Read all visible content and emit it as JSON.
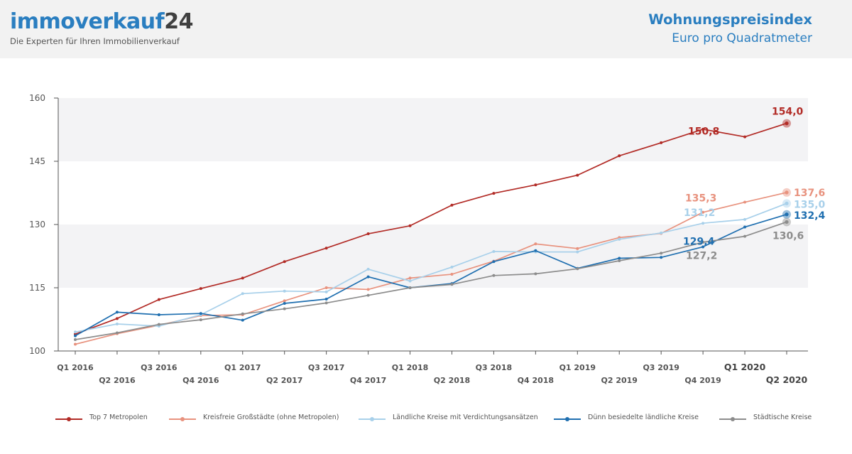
{
  "header": {
    "logo_main": "immoverkauf",
    "logo_num": "24",
    "tagline": "Die Experten für Ihren Immobilienverkauf",
    "index_title": "Wohnungspreisindex",
    "index_subtitle": "Euro pro Quadratmeter"
  },
  "chart_data": {
    "type": "line",
    "title": "Wohnungspreisindex",
    "subtitle": "Euro pro Quadratmeter",
    "x": [
      "Q1 2016",
      "Q2 2016",
      "Q3 2016",
      "Q4 2016",
      "Q1 2017",
      "Q2 2017",
      "Q3 2017",
      "Q4 2017",
      "Q1 2018",
      "Q2 2018",
      "Q3 2018",
      "Q4 2018",
      "Q1 2019",
      "Q2 2019",
      "Q3 2019",
      "Q4 2019",
      "Q1 2020",
      "Q2 2020"
    ],
    "bold_ticks": [
      "Q1 2020",
      "Q2 2020"
    ],
    "yticks": [
      100,
      115,
      130,
      145,
      160
    ],
    "ylim": [
      100,
      160
    ],
    "band_ranges": [
      [
        115,
        130
      ],
      [
        145,
        160
      ]
    ],
    "legend_position": "bottom",
    "series": [
      {
        "name": "Top 7 Metropolen",
        "color": "#b22b26",
        "values": [
          104.0,
          107.7,
          112.2,
          114.8,
          117.3,
          121.2,
          124.4,
          127.8,
          129.7,
          134.6,
          137.4,
          139.4,
          141.7,
          146.3,
          149.4,
          152.6,
          150.8,
          154.0
        ]
      },
      {
        "name": "Kreisfreie Großstädte (ohne Metropolen)",
        "color": "#e8927e",
        "values": [
          101.6,
          104.1,
          106.1,
          108.4,
          108.6,
          111.9,
          115.0,
          114.6,
          117.3,
          118.2,
          121.3,
          125.4,
          124.3,
          126.9,
          127.9,
          132.9,
          135.3,
          137.6
        ]
      },
      {
        "name": "Ländliche Kreise mit Verdichtungsansätzen",
        "color": "#a8d0ea",
        "values": [
          104.5,
          106.4,
          105.9,
          108.6,
          113.6,
          114.2,
          114.0,
          119.4,
          116.6,
          119.9,
          123.6,
          123.5,
          123.5,
          126.5,
          128.0,
          130.3,
          131.2,
          135.0
        ]
      },
      {
        "name": "Dünn besiedelte ländliche Kreise",
        "color": "#1f6fb0",
        "values": [
          103.6,
          109.2,
          108.6,
          108.9,
          107.3,
          111.3,
          112.3,
          117.6,
          115.0,
          116.0,
          121.2,
          123.8,
          119.6,
          122.0,
          122.2,
          124.7,
          129.4,
          132.4
        ]
      },
      {
        "name": "Städtische Kreise",
        "color": "#8c8c8c",
        "values": [
          102.7,
          104.3,
          106.3,
          107.4,
          108.8,
          110.0,
          111.4,
          113.2,
          115.0,
          115.8,
          117.9,
          118.3,
          119.5,
          121.4,
          123.2,
          125.8,
          127.2,
          130.6
        ]
      }
    ],
    "annotations": [
      {
        "text": "154,0",
        "series": 0,
        "index": 17,
        "color": "#b22b26"
      },
      {
        "text": "150,8",
        "series": 0,
        "index": 16,
        "color": "#b22b26"
      },
      {
        "text": "137,6",
        "series": 1,
        "index": 17,
        "color": "#e8927e"
      },
      {
        "text": "135,3",
        "series": 1,
        "index": 16,
        "color": "#e8927e"
      },
      {
        "text": "135,0",
        "series": 2,
        "index": 17,
        "color": "#a8d0ea"
      },
      {
        "text": "131,2",
        "series": 2,
        "index": 16,
        "color": "#a8d0ea"
      },
      {
        "text": "132,4",
        "series": 3,
        "index": 17,
        "color": "#1f6fb0"
      },
      {
        "text": "129,4",
        "series": 3,
        "index": 16,
        "color": "#1f6fb0"
      },
      {
        "text": "130,6",
        "series": 4,
        "index": 17,
        "color": "#8c8c8c"
      },
      {
        "text": "127,2",
        "series": 4,
        "index": 16,
        "color": "#8c8c8c"
      }
    ]
  }
}
